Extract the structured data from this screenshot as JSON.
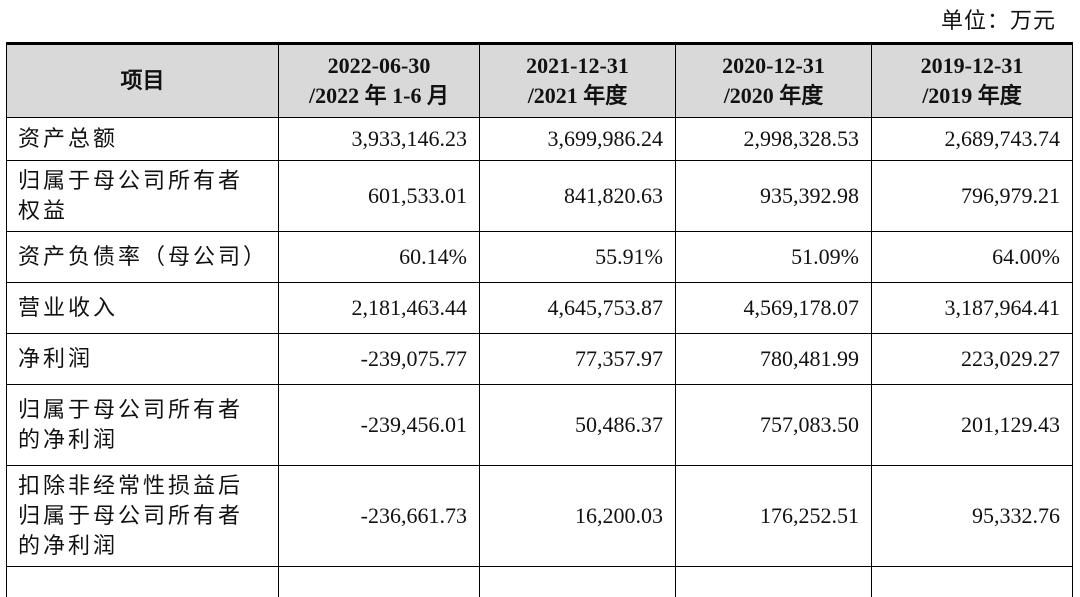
{
  "unit_label": "单位：万元",
  "table": {
    "headers": [
      {
        "line1": "项目",
        "line2": ""
      },
      {
        "line1": "2022-06-30",
        "line2": "/2022 年 1-6 月"
      },
      {
        "line1": "2021-12-31",
        "line2": "/2021 年度"
      },
      {
        "line1": "2020-12-31",
        "line2": "/2020 年度"
      },
      {
        "line1": "2019-12-31",
        "line2": "/2019 年度"
      }
    ],
    "rows": [
      {
        "label_lines": [
          "资产总额"
        ],
        "values": [
          "3,933,146.23",
          "3,699,986.24",
          "2,998,328.53",
          "2,689,743.74"
        ]
      },
      {
        "label_lines": [
          "归属于母公司所有者",
          "权益"
        ],
        "values": [
          "601,533.01",
          "841,820.63",
          "935,392.98",
          "796,979.21"
        ]
      },
      {
        "label_lines": [
          "资产负债率（母公司）"
        ],
        "values": [
          "60.14%",
          "55.91%",
          "51.09%",
          "64.00%"
        ]
      },
      {
        "label_lines": [
          "营业收入"
        ],
        "values": [
          "2,181,463.44",
          "4,645,753.87",
          "4,569,178.07",
          "3,187,964.41"
        ]
      },
      {
        "label_lines": [
          "净利润"
        ],
        "values": [
          "-239,075.77",
          "77,357.97",
          "780,481.99",
          "223,029.27"
        ]
      },
      {
        "label_lines": [
          "归属于母公司所有者",
          "的净利润"
        ],
        "values": [
          "-239,456.01",
          "50,486.37",
          "757,083.50",
          "201,129.43"
        ]
      },
      {
        "label_lines": [
          "扣除非经常性损益后",
          "归属于母公司所有者",
          "的净利润"
        ],
        "values": [
          "-236,661.73",
          "16,200.03",
          "176,252.51",
          "95,332.76"
        ]
      }
    ]
  }
}
